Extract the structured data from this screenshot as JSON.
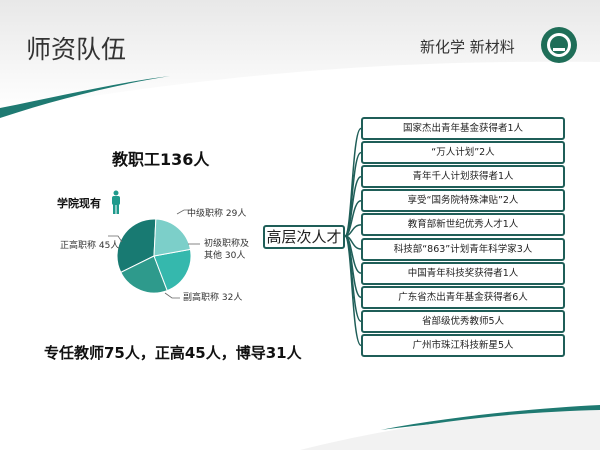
{
  "header": {
    "title": "师资队伍",
    "slogan": "新化学 新材料",
    "logo": "university-seal"
  },
  "staff_total": "教职工136人",
  "pie": {
    "heading": "学院现有",
    "icon": "person-icon",
    "slices": [
      {
        "label": "中级职称 29人",
        "value": 29,
        "color": "#7ccfc9"
      },
      {
        "label": "初级职称及其他 30人",
        "value": 30,
        "color": "#35b8ad"
      },
      {
        "label": "副高职称 32人",
        "value": 32,
        "color": "#2e9a8c"
      },
      {
        "label": "正高职称 45人",
        "value": 45,
        "color": "#187a72"
      }
    ],
    "label_lines": {
      "初级": [
        "初级职称及",
        "其他 30人"
      ]
    }
  },
  "summary": "专任教师75人，正高45人，博导31人",
  "talent": {
    "root": "高层次人才",
    "items": [
      "国家杰出青年基金获得者1人",
      "“万人计划”2人",
      "青年千人计划获得者1人",
      "享受“国务院特殊津贴”2人",
      "教育部新世纪优秀人才1人",
      "科技部“863”计划青年科学家3人",
      "中国青年科技奖获得者1人",
      "广东省杰出青年基金获得者6人",
      "省部级优秀教师5人",
      "广州市珠江科技新星5人"
    ]
  },
  "colors": {
    "accent": "#1f7a72",
    "border": "#1f5e58"
  }
}
